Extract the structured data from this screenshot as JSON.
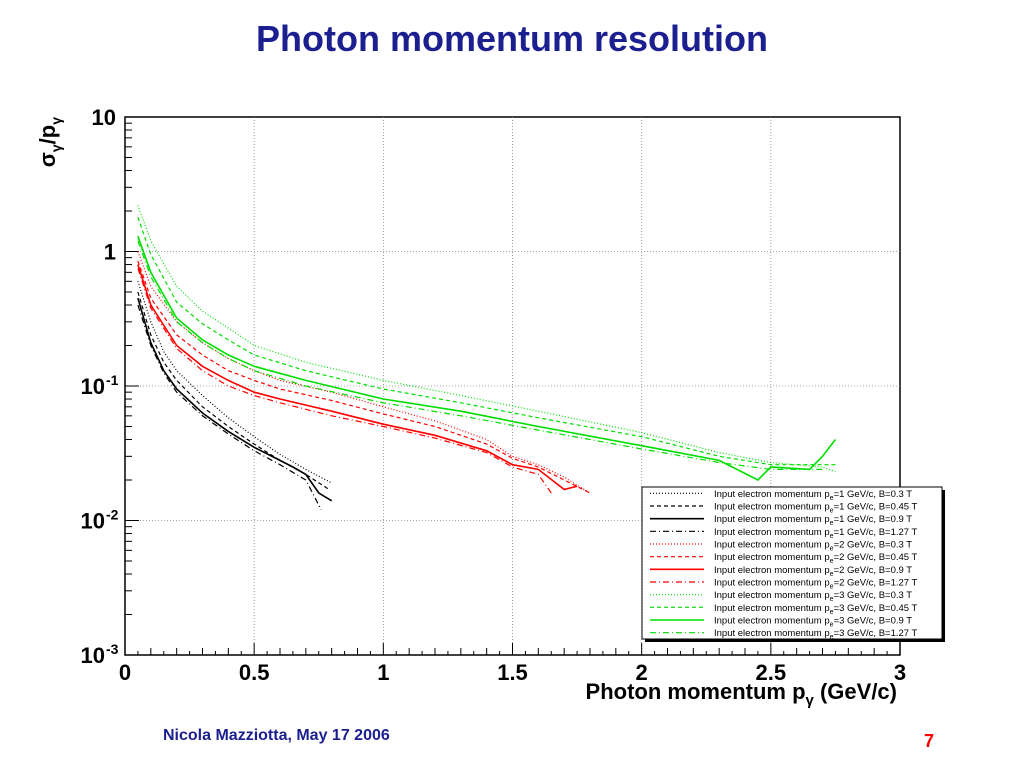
{
  "slide": {
    "title": "Photon momentum resolution",
    "author_line": "Nicola Mazziotta, May 17 2006",
    "page_number": "7"
  },
  "colors": {
    "title": "#1c1f8f",
    "page_number": "#ff0000",
    "series_1gev": "#000000",
    "series_2gev": "#ff0000",
    "series_3gev": "#00dd00"
  },
  "chart_data": {
    "type": "line",
    "xlabel": "Photon momentum p",
    "xlabel_subscript": "γ",
    "xlabel_unit": " (GeV/c)",
    "ylabel": "σ",
    "ylabel_sub1": "γ",
    "ylabel_mid": "/p",
    "ylabel_sub2": "γ",
    "xlim": [
      0,
      3
    ],
    "ylim": [
      0.001,
      10
    ],
    "yscale": "log",
    "grid": true,
    "legend_position": "bottom-right",
    "x_ticks": [
      "0",
      "0.5",
      "1",
      "1.5",
      "2",
      "2.5",
      "3"
    ],
    "x_tick_values": [
      0,
      0.5,
      1,
      1.5,
      2,
      2.5,
      3
    ],
    "y_ticks": [
      {
        "value": 10,
        "base": "10",
        "exp": ""
      },
      {
        "value": 1,
        "base": "1",
        "exp": ""
      },
      {
        "value": 0.1,
        "base": "10",
        "exp": "-1"
      },
      {
        "value": 0.01,
        "base": "10",
        "exp": "-2"
      },
      {
        "value": 0.001,
        "base": "10",
        "exp": "-3"
      }
    ],
    "series": [
      {
        "name": "Input electron momentum p =1 GeV/c, B=0.3 T",
        "sub": "e",
        "color": "#000000",
        "dash": "1,2",
        "x": [
          0.05,
          0.1,
          0.15,
          0.2,
          0.3,
          0.4,
          0.5,
          0.6,
          0.7,
          0.8
        ],
        "y": [
          0.6,
          0.3,
          0.18,
          0.13,
          0.085,
          0.058,
          0.042,
          0.031,
          0.024,
          0.019
        ]
      },
      {
        "name": "Input electron momentum p =1 GeV/c, B=0.45 T",
        "sub": "e",
        "color": "#000000",
        "dash": "4,3",
        "x": [
          0.05,
          0.1,
          0.15,
          0.2,
          0.3,
          0.4,
          0.5,
          0.6,
          0.7,
          0.79
        ],
        "y": [
          0.5,
          0.24,
          0.15,
          0.11,
          0.07,
          0.05,
          0.037,
          0.028,
          0.022,
          0.017
        ]
      },
      {
        "name": "Input electron momentum p =1 GeV/c, B=0.9 T",
        "sub": "e",
        "color": "#000000",
        "dash": "",
        "x": [
          0.05,
          0.1,
          0.15,
          0.2,
          0.3,
          0.4,
          0.5,
          0.6,
          0.65,
          0.7,
          0.75,
          0.8
        ],
        "y": [
          0.45,
          0.21,
          0.13,
          0.095,
          0.063,
          0.046,
          0.035,
          0.028,
          0.025,
          0.022,
          0.016,
          0.014
        ]
      },
      {
        "name": "Input electron momentum p =1 GeV/c, B=1.27 T",
        "sub": "e",
        "color": "#000000",
        "dash": "6,3,1,3",
        "x": [
          0.05,
          0.1,
          0.15,
          0.2,
          0.3,
          0.4,
          0.5,
          0.6,
          0.7,
          0.76
        ],
        "y": [
          0.4,
          0.2,
          0.125,
          0.09,
          0.06,
          0.044,
          0.033,
          0.026,
          0.02,
          0.012
        ]
      },
      {
        "name": "Input electron momentum p =2 GeV/c, B=0.3 T",
        "sub": "e",
        "color": "#ff0000",
        "dash": "1,2",
        "x": [
          0.05,
          0.1,
          0.2,
          0.3,
          0.4,
          0.5,
          0.6,
          0.8,
          1.0,
          1.2,
          1.4,
          1.5,
          1.6,
          1.7,
          1.8
        ],
        "y": [
          1.0,
          0.55,
          0.3,
          0.21,
          0.16,
          0.13,
          0.11,
          0.09,
          0.07,
          0.055,
          0.04,
          0.03,
          0.026,
          0.021,
          0.016
        ]
      },
      {
        "name": "Input electron momentum p =2 GeV/c, B=0.45 T",
        "sub": "e",
        "color": "#ff0000",
        "dash": "4,3",
        "x": [
          0.05,
          0.1,
          0.2,
          0.3,
          0.4,
          0.5,
          0.6,
          0.8,
          1.0,
          1.2,
          1.4,
          1.5,
          1.6,
          1.7,
          1.8
        ],
        "y": [
          0.85,
          0.45,
          0.24,
          0.17,
          0.13,
          0.11,
          0.095,
          0.078,
          0.062,
          0.05,
          0.037,
          0.029,
          0.025,
          0.02,
          0.016
        ]
      },
      {
        "name": "Input electron momentum p =2 GeV/c, B=0.9 T",
        "sub": "e",
        "color": "#ff0000",
        "dash": "",
        "x": [
          0.05,
          0.1,
          0.2,
          0.3,
          0.4,
          0.5,
          0.6,
          0.8,
          1.0,
          1.2,
          1.4,
          1.5,
          1.6,
          1.7,
          1.75
        ],
        "y": [
          0.8,
          0.4,
          0.2,
          0.14,
          0.11,
          0.09,
          0.08,
          0.065,
          0.052,
          0.043,
          0.033,
          0.026,
          0.024,
          0.017,
          0.018
        ]
      },
      {
        "name": "Input electron momentum p =2 GeV/c, B=1.27 T",
        "sub": "e",
        "color": "#ff0000",
        "dash": "6,3,1,3",
        "x": [
          0.05,
          0.1,
          0.2,
          0.3,
          0.4,
          0.5,
          0.6,
          0.8,
          1.0,
          1.2,
          1.4,
          1.5,
          1.6,
          1.65
        ],
        "y": [
          0.75,
          0.38,
          0.19,
          0.13,
          0.1,
          0.085,
          0.075,
          0.06,
          0.05,
          0.041,
          0.032,
          0.025,
          0.022,
          0.016
        ]
      },
      {
        "name": "Input electron momentum p =3 GeV/c, B=0.3 T",
        "sub": "e",
        "color": "#00dd00",
        "dash": "1,2",
        "x": [
          0.05,
          0.1,
          0.2,
          0.3,
          0.4,
          0.5,
          0.7,
          1.0,
          1.3,
          1.6,
          2.0,
          2.3,
          2.5,
          2.7,
          2.75
        ],
        "y": [
          2.2,
          1.2,
          0.55,
          0.36,
          0.27,
          0.2,
          0.15,
          0.11,
          0.085,
          0.065,
          0.045,
          0.032,
          0.027,
          0.025,
          0.023
        ]
      },
      {
        "name": "Input electron momentum p =3 GeV/c, B=0.45 T",
        "sub": "e",
        "color": "#00dd00",
        "dash": "4,3",
        "x": [
          0.05,
          0.1,
          0.2,
          0.3,
          0.4,
          0.5,
          0.7,
          1.0,
          1.3,
          1.6,
          2.0,
          2.3,
          2.5,
          2.7,
          2.75
        ],
        "y": [
          1.8,
          0.95,
          0.42,
          0.29,
          0.22,
          0.17,
          0.13,
          0.095,
          0.075,
          0.058,
          0.042,
          0.03,
          0.026,
          0.026,
          0.026
        ]
      },
      {
        "name": "Input electron momentum p =3 GeV/c, B=0.9 T",
        "sub": "e",
        "color": "#00dd00",
        "dash": "",
        "x": [
          0.05,
          0.1,
          0.2,
          0.3,
          0.4,
          0.5,
          0.7,
          1.0,
          1.3,
          1.6,
          2.0,
          2.3,
          2.45,
          2.5,
          2.65,
          2.7,
          2.75
        ],
        "y": [
          1.3,
          0.7,
          0.32,
          0.22,
          0.17,
          0.14,
          0.11,
          0.08,
          0.065,
          0.05,
          0.036,
          0.028,
          0.02,
          0.025,
          0.024,
          0.03,
          0.04
        ]
      },
      {
        "name": "Input electron momentum p =3 GeV/c, B=1.27 T",
        "sub": "e",
        "color": "#00dd00",
        "dash": "6,3,1,3",
        "x": [
          0.05,
          0.1,
          0.2,
          0.3,
          0.4,
          0.5,
          0.7,
          1.0,
          1.3,
          1.6,
          2.0,
          2.3,
          2.5,
          2.7
        ],
        "y": [
          1.2,
          0.65,
          0.3,
          0.21,
          0.16,
          0.13,
          0.1,
          0.075,
          0.06,
          0.047,
          0.034,
          0.027,
          0.024,
          0.024
        ]
      }
    ]
  }
}
